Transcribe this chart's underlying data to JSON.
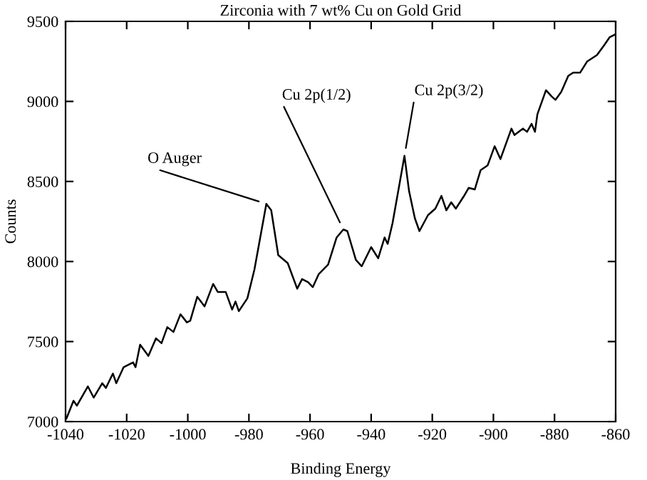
{
  "chart_data": {
    "type": "line",
    "title": "Zirconia with 7 wt% Cu on Gold Grid",
    "xlabel": "Binding Energy",
    "ylabel": "Counts",
    "x": [
      -1039.7,
      -1037.4,
      -1036.3,
      -1032.7,
      -1030.8,
      -1028,
      -1026.8,
      -1024.5,
      -1023.4,
      -1021,
      -1017.9,
      -1017.1,
      -1015.6,
      -1012.9,
      -1010.4,
      -1008.6,
      -1006.7,
      -1004.7,
      -1002.4,
      -1000.3,
      -999.2,
      -996.9,
      -994.5,
      -991.7,
      -990.2,
      -987.6,
      -985.5,
      -984.4,
      -983.3,
      -980.5,
      -978.2,
      -974.3,
      -972.7,
      -970.4,
      -967.3,
      -964.2,
      -962.6,
      -960.6,
      -959.1,
      -957.2,
      -954.1,
      -951.3,
      -949.1,
      -947.8,
      -945,
      -943.1,
      -940,
      -937.7,
      -935.6,
      -934.6,
      -933,
      -929.1,
      -927.6,
      -925.7,
      -924.2,
      -921.4,
      -919,
      -917,
      -915.4,
      -913.8,
      -912.3,
      -909.6,
      -908.1,
      -906.1,
      -904.2,
      -901.9,
      -899.6,
      -897.7,
      -894.1,
      -893.1,
      -890.3,
      -889,
      -887.5,
      -886.4,
      -885.6,
      -882.8,
      -880.9,
      -879.7,
      -877.8,
      -875.5,
      -873.9,
      -871.6,
      -869.3,
      -866.1,
      -863.8,
      -862,
      -860
    ],
    "values": [
      7020,
      7130,
      7100,
      7220,
      7150,
      7240,
      7210,
      7300,
      7240,
      7340,
      7370,
      7340,
      7480,
      7410,
      7520,
      7490,
      7590,
      7560,
      7670,
      7620,
      7630,
      7780,
      7720,
      7860,
      7810,
      7810,
      7700,
      7750,
      7690,
      7770,
      7950,
      8360,
      8320,
      8040,
      7990,
      7830,
      7890,
      7870,
      7840,
      7920,
      7980,
      8150,
      8200,
      8190,
      8010,
      7970,
      8090,
      8020,
      8150,
      8110,
      8240,
      8660,
      8440,
      8270,
      8190,
      8290,
      8330,
      8410,
      8320,
      8370,
      8330,
      8410,
      8460,
      8450,
      8570,
      8600,
      8720,
      8640,
      8830,
      8790,
      8830,
      8810,
      8860,
      8810,
      8920,
      9070,
      9030,
      9010,
      9060,
      9160,
      9180,
      9180,
      9250,
      9290,
      9350,
      9400,
      9420
    ],
    "color": "#000000",
    "xlim": [
      -1040,
      -860
    ],
    "xticks": [
      -1040,
      -1020,
      -1000,
      -980,
      -960,
      -940,
      -920,
      -900,
      -880,
      -860
    ],
    "ylim": [
      7000,
      9500
    ],
    "yticks": [
      7000,
      7500,
      8000,
      8500,
      9000,
      9500
    ],
    "grid": false,
    "marker": "none",
    "line_style": "solid",
    "annotations": [
      {
        "text": "O Auger",
        "x": -974.3,
        "y": 8360
      },
      {
        "text": "Cu 2p(1/2)",
        "x": -949.1,
        "y": 8200
      },
      {
        "text": "Cu 2p(3/2)",
        "x": -929.1,
        "y": 8660
      }
    ]
  }
}
